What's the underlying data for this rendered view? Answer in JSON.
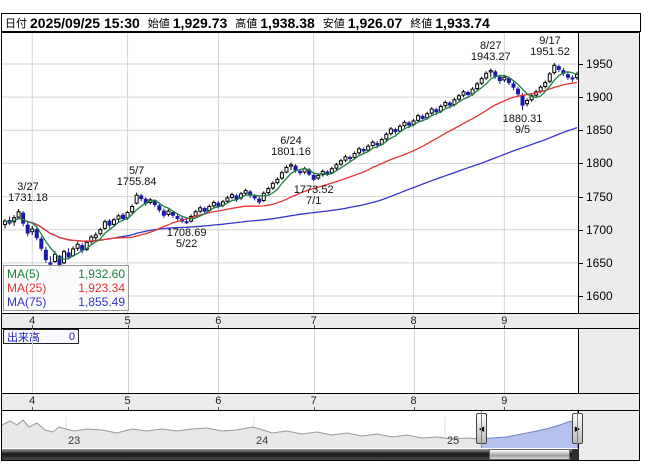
{
  "header": {
    "date_label": "日付",
    "date_value": "2025/09/25 15:30",
    "open_label": "始値",
    "open_value": "1,929.73",
    "high_label": "高値",
    "high_value": "1,938.38",
    "low_label": "安値",
    "low_value": "1,926.07",
    "close_label": "終値",
    "close_value": "1,933.74"
  },
  "volume": {
    "label": "出来高",
    "value": "0"
  },
  "colors": {
    "up_candle": "#ffffff",
    "up_border": "#000000",
    "down_candle": "#1a1aa8",
    "ma5": "#1e8040",
    "ma25": "#e63232",
    "ma75": "#3535cd",
    "high_text": "#d40000",
    "low_text": "#007a00",
    "grid": "#d4d4d4",
    "panel": "#ececec",
    "selection_fill": "#b6c2ee",
    "selection_line": "#7788cc",
    "nav_line": "#999999",
    "nav_fill": "#e8e8e8",
    "cyan_marker": "#00b4d4"
  },
  "chart_data": {
    "type": "candlestick",
    "title": "",
    "y_ticks": [
      1950,
      1900,
      1850,
      1800,
      1750,
      1700,
      1650,
      1600
    ],
    "y_range": [
      1567,
      1993
    ],
    "x_month_labels": [
      "4",
      "5",
      "6",
      "7",
      "8",
      "9"
    ],
    "ma_legend": [
      {
        "label": "MA(5)",
        "value": "1,932.60",
        "color": "#1e8040"
      },
      {
        "label": "MA(25)",
        "value": "1,923.34",
        "color": "#e63232"
      },
      {
        "label": "MA(75)",
        "value": "1,855.49",
        "color": "#3535cd"
      }
    ],
    "ma_windows": [
      75,
      25,
      5
    ],
    "annotations": [
      {
        "date": "3/27",
        "price": "1731.18",
        "pos": "above"
      },
      {
        "date": "5/7",
        "price": "1755.84",
        "pos": "above"
      },
      {
        "date": "5/22",
        "price": "1708.69",
        "pos": "below"
      },
      {
        "date": "6/24",
        "price": "1801.16",
        "pos": "above"
      },
      {
        "date": "7/1",
        "price": "1773.52",
        "pos": "below"
      },
      {
        "date": "8/27",
        "price": "1943.27",
        "pos": "above"
      },
      {
        "date": "9/5",
        "price": "1880.31",
        "pos": "below"
      },
      {
        "date": "9/17",
        "price": "1951.52",
        "pos": "above"
      }
    ],
    "candles": [
      [
        "3/24",
        1708,
        1716,
        1702,
        1713
      ],
      [
        "3/25",
        1714,
        1720,
        1707,
        1710
      ],
      [
        "3/26",
        1712,
        1722,
        1706,
        1718
      ],
      [
        "3/27",
        1719,
        1731.18,
        1716,
        1727
      ],
      [
        "3/28",
        1725,
        1728,
        1705,
        1710
      ],
      [
        "3/31",
        1707,
        1712,
        1690,
        1695
      ],
      [
        "4/1",
        1697,
        1706,
        1692,
        1701
      ],
      [
        "4/2",
        1700,
        1703,
        1684,
        1688
      ],
      [
        "4/3",
        1686,
        1690,
        1668,
        1672
      ],
      [
        "4/4",
        1669,
        1674,
        1650,
        1655
      ],
      [
        "4/7",
        1650,
        1660,
        1640,
        1648
      ],
      [
        "4/8",
        1652,
        1668,
        1650,
        1663
      ],
      [
        "4/9",
        1660,
        1662,
        1640.5,
        1645
      ],
      [
        "4/10",
        1650,
        1670,
        1648,
        1667
      ],
      [
        "4/11",
        1665,
        1672,
        1655,
        1659
      ],
      [
        "4/14",
        1661,
        1675,
        1659,
        1671
      ],
      [
        "4/15",
        1672,
        1682,
        1668,
        1678
      ],
      [
        "4/16",
        1676,
        1680,
        1664,
        1669
      ],
      [
        "4/17",
        1670,
        1684,
        1668,
        1681
      ],
      [
        "4/18",
        1682,
        1692,
        1679,
        1689
      ],
      [
        "4/21",
        1688,
        1696,
        1684,
        1692
      ],
      [
        "4/22",
        1694,
        1703,
        1691,
        1700
      ],
      [
        "4/23",
        1702,
        1715,
        1700,
        1712
      ],
      [
        "4/24",
        1713,
        1716,
        1702,
        1707
      ],
      [
        "4/25",
        1708,
        1718,
        1705,
        1715
      ],
      [
        "4/28",
        1716,
        1724,
        1712,
        1721
      ],
      [
        "4/30",
        1722,
        1725,
        1713,
        1717
      ],
      [
        "5/1",
        1718,
        1728,
        1715,
        1726
      ],
      [
        "5/2",
        1727,
        1738,
        1724,
        1735
      ],
      [
        "5/7",
        1740,
        1755.84,
        1738,
        1752
      ],
      [
        "5/8",
        1751,
        1754,
        1743,
        1747
      ],
      [
        "5/9",
        1746,
        1749,
        1736,
        1740
      ],
      [
        "5/12",
        1741,
        1748,
        1738,
        1745
      ],
      [
        "5/13",
        1744,
        1746,
        1734,
        1738
      ],
      [
        "5/14",
        1736,
        1740,
        1726,
        1730
      ],
      [
        "5/15",
        1728,
        1732,
        1718,
        1722
      ],
      [
        "5/16",
        1723,
        1731,
        1720,
        1728
      ],
      [
        "5/19",
        1726,
        1729,
        1718,
        1722
      ],
      [
        "5/20",
        1720,
        1724,
        1714,
        1717
      ],
      [
        "5/21",
        1716,
        1720,
        1710,
        1713
      ],
      [
        "5/22",
        1712,
        1718,
        1708.69,
        1711
      ],
      [
        "5/23",
        1713,
        1723,
        1711,
        1720
      ],
      [
        "5/26",
        1721,
        1730,
        1719,
        1727
      ],
      [
        "5/27",
        1728,
        1736,
        1725,
        1733
      ],
      [
        "5/28",
        1732,
        1735,
        1724,
        1728
      ],
      [
        "5/29",
        1729,
        1738,
        1727,
        1735
      ],
      [
        "5/30",
        1736,
        1744,
        1733,
        1741
      ],
      [
        "6/2",
        1740,
        1743,
        1732,
        1736
      ],
      [
        "6/3",
        1737,
        1745,
        1734,
        1742
      ],
      [
        "6/4",
        1743,
        1751,
        1740,
        1748
      ],
      [
        "6/5",
        1749,
        1756,
        1746,
        1753
      ],
      [
        "6/6",
        1751,
        1754,
        1742,
        1746
      ],
      [
        "6/9",
        1748,
        1757,
        1745,
        1754
      ],
      [
        "6/10",
        1755,
        1762,
        1752,
        1759
      ],
      [
        "6/11",
        1757,
        1760,
        1748,
        1752
      ],
      [
        "6/12",
        1750,
        1754,
        1744,
        1748
      ],
      [
        "6/13",
        1746,
        1750,
        1738,
        1742
      ],
      [
        "6/16",
        1744,
        1758,
        1742,
        1755
      ],
      [
        "6/17",
        1756,
        1765,
        1753,
        1762
      ],
      [
        "6/18",
        1763,
        1773,
        1760,
        1770
      ],
      [
        "6/19",
        1771,
        1779,
        1768,
        1776
      ],
      [
        "6/20",
        1778,
        1789,
        1775,
        1786
      ],
      [
        "6/23",
        1787,
        1797,
        1785,
        1794
      ],
      [
        "6/24",
        1796,
        1801.16,
        1790,
        1798
      ],
      [
        "6/25",
        1796,
        1799,
        1786,
        1790
      ],
      [
        "6/26",
        1788,
        1792,
        1782,
        1786
      ],
      [
        "6/27",
        1787,
        1795,
        1784,
        1792
      ],
      [
        "6/30",
        1790,
        1793,
        1781,
        1784
      ],
      [
        "7/1",
        1782,
        1785,
        1773.52,
        1776
      ],
      [
        "7/2",
        1778,
        1785,
        1775,
        1782
      ],
      [
        "7/3",
        1783,
        1791,
        1780,
        1788
      ],
      [
        "7/4",
        1787,
        1790,
        1781,
        1785
      ],
      [
        "7/7",
        1786,
        1795,
        1784,
        1792
      ],
      [
        "7/8",
        1793,
        1801,
        1790,
        1798
      ],
      [
        "7/9",
        1799,
        1807,
        1796,
        1804
      ],
      [
        "7/10",
        1805,
        1813,
        1802,
        1810
      ],
      [
        "7/11",
        1809,
        1812,
        1803,
        1808
      ],
      [
        "7/14",
        1809,
        1818,
        1806,
        1815
      ],
      [
        "7/15",
        1816,
        1825,
        1813,
        1822
      ],
      [
        "7/16",
        1821,
        1824,
        1814,
        1819
      ],
      [
        "7/17",
        1820,
        1829,
        1817,
        1826
      ],
      [
        "7/18",
        1827,
        1835,
        1824,
        1832
      ],
      [
        "7/22",
        1830,
        1834,
        1823,
        1828
      ],
      [
        "7/23",
        1829,
        1839,
        1827,
        1836
      ],
      [
        "7/24",
        1837,
        1847,
        1834,
        1844
      ],
      [
        "7/25",
        1845,
        1855,
        1842,
        1852
      ],
      [
        "7/28",
        1851,
        1854,
        1844,
        1848
      ],
      [
        "7/29",
        1849,
        1859,
        1847,
        1856
      ],
      [
        "7/30",
        1857,
        1865,
        1854,
        1862
      ],
      [
        "7/31",
        1861,
        1864,
        1853,
        1858
      ],
      [
        "8/1",
        1859,
        1867,
        1856,
        1864
      ],
      [
        "8/4",
        1865,
        1875,
        1862,
        1872
      ],
      [
        "8/5",
        1871,
        1874,
        1863,
        1868
      ],
      [
        "8/6",
        1869,
        1878,
        1866,
        1875
      ],
      [
        "8/7",
        1876,
        1885,
        1873,
        1882
      ],
      [
        "8/8",
        1881,
        1884,
        1873,
        1878
      ],
      [
        "8/12",
        1879,
        1889,
        1876,
        1886
      ],
      [
        "8/13",
        1887,
        1895,
        1884,
        1892
      ],
      [
        "8/14",
        1891,
        1894,
        1883,
        1888
      ],
      [
        "8/15",
        1889,
        1899,
        1886,
        1896
      ],
      [
        "8/18",
        1897,
        1905,
        1894,
        1902
      ],
      [
        "8/19",
        1903,
        1911,
        1900,
        1908
      ],
      [
        "8/20",
        1907,
        1910,
        1899,
        1904
      ],
      [
        "8/21",
        1905,
        1915,
        1902,
        1912
      ],
      [
        "8/22",
        1913,
        1923,
        1910,
        1920
      ],
      [
        "8/25",
        1921,
        1931,
        1918,
        1928
      ],
      [
        "8/26",
        1929,
        1939,
        1926,
        1936
      ],
      [
        "8/27",
        1938,
        1943.27,
        1930,
        1940
      ],
      [
        "8/28",
        1938,
        1941,
        1928,
        1932
      ],
      [
        "8/29",
        1930,
        1934,
        1920,
        1925
      ],
      [
        "9/1",
        1926,
        1933,
        1923,
        1930
      ],
      [
        "9/2",
        1928,
        1931,
        1918,
        1922
      ],
      [
        "9/3",
        1920,
        1924,
        1910,
        1915
      ],
      [
        "9/4",
        1912,
        1916,
        1900,
        1905
      ],
      [
        "9/5",
        1902,
        1906,
        1880.31,
        1888
      ],
      [
        "9/8",
        1890,
        1898,
        1886,
        1895
      ],
      [
        "9/9",
        1896,
        1905,
        1893,
        1902
      ],
      [
        "9/10",
        1903,
        1911,
        1900,
        1908
      ],
      [
        "9/11",
        1909,
        1918,
        1906,
        1915
      ],
      [
        "9/12",
        1916,
        1925,
        1913,
        1922
      ],
      [
        "9/16",
        1924,
        1938,
        1921,
        1935
      ],
      [
        "9/17",
        1937,
        1951.52,
        1934,
        1948
      ],
      [
        "9/18",
        1946,
        1949,
        1938,
        1942
      ],
      [
        "9/19",
        1940,
        1944,
        1932,
        1936
      ],
      [
        "9/22",
        1934,
        1938,
        1926,
        1930
      ],
      [
        "9/24",
        1929,
        1933,
        1923,
        1928
      ],
      [
        "9/25",
        1929.73,
        1938.38,
        1926.07,
        1933.74
      ]
    ],
    "volume_values": "all_zero",
    "legend_position": "bottom-left",
    "grid": true
  },
  "navigator": {
    "year_labels": [
      {
        "text": "23",
        "x": 64
      },
      {
        "text": "24",
        "x": 252
      },
      {
        "text": "25",
        "x": 443
      }
    ],
    "points": [
      [
        0,
        14
      ],
      [
        8,
        10
      ],
      [
        15,
        14
      ],
      [
        21,
        9
      ],
      [
        27,
        16
      ],
      [
        35,
        12
      ],
      [
        43,
        19
      ],
      [
        51,
        21
      ],
      [
        57,
        16
      ],
      [
        64,
        18
      ],
      [
        72,
        20
      ],
      [
        85,
        18
      ],
      [
        100,
        19
      ],
      [
        115,
        22
      ],
      [
        130,
        18
      ],
      [
        145,
        20
      ],
      [
        160,
        18
      ],
      [
        175,
        20
      ],
      [
        190,
        18
      ],
      [
        205,
        17
      ],
      [
        220,
        20
      ],
      [
        235,
        19
      ],
      [
        250,
        16
      ],
      [
        258,
        18
      ],
      [
        270,
        22
      ],
      [
        285,
        20
      ],
      [
        300,
        23
      ],
      [
        315,
        21
      ],
      [
        330,
        24
      ],
      [
        345,
        22
      ],
      [
        360,
        25
      ],
      [
        375,
        23
      ],
      [
        390,
        26
      ],
      [
        405,
        24
      ],
      [
        420,
        27
      ],
      [
        435,
        26
      ],
      [
        450,
        28
      ],
      [
        465,
        27
      ],
      [
        478,
        28
      ],
      [
        490,
        27
      ],
      [
        505,
        26
      ],
      [
        520,
        23
      ],
      [
        535,
        20
      ],
      [
        548,
        17
      ],
      [
        558,
        14
      ],
      [
        566,
        11
      ],
      [
        572,
        10
      ],
      [
        576,
        11
      ]
    ],
    "selection": {
      "start": 479,
      "end": 575
    },
    "left_handle_glyph": "◀",
    "right_handle_glyph": "▶"
  }
}
